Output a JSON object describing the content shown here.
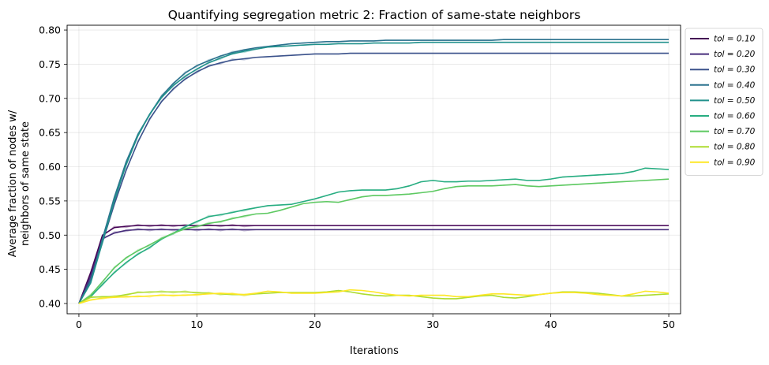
{
  "chart_data": {
    "type": "line",
    "title": "Quantifying segregation metric 2: Fraction of same-state neighbors",
    "xlabel": "Iterations",
    "ylabel_lines": [
      "Average fraction of nodes w/",
      "neighbors of same state"
    ],
    "xlim": [
      -1,
      51
    ],
    "ylim": [
      0.385,
      0.807
    ],
    "xticks": [
      0,
      10,
      20,
      30,
      40,
      50
    ],
    "yticks": [
      0.4,
      0.45,
      0.5,
      0.55,
      0.6,
      0.65,
      0.7,
      0.75,
      0.8
    ],
    "ytick_labels": [
      "0.40",
      "0.45",
      "0.50",
      "0.55",
      "0.60",
      "0.65",
      "0.70",
      "0.75",
      "0.80"
    ],
    "grid": true,
    "legend_position": "outside-top-right",
    "x": [
      0,
      1,
      2,
      3,
      4,
      5,
      6,
      7,
      8,
      9,
      10,
      11,
      12,
      13,
      14,
      15,
      16,
      17,
      18,
      19,
      20,
      21,
      22,
      23,
      24,
      25,
      26,
      27,
      28,
      29,
      30,
      31,
      32,
      33,
      34,
      35,
      36,
      37,
      38,
      39,
      40,
      41,
      42,
      43,
      44,
      45,
      46,
      47,
      48,
      49,
      50
    ],
    "series": [
      {
        "name": "tol = 0.10",
        "color": "#440154",
        "values": [
          0.4,
          0.445,
          0.5,
          0.511,
          0.513,
          0.514,
          0.514,
          0.514,
          0.514,
          0.514,
          0.514,
          0.514,
          0.514,
          0.514,
          0.514,
          0.514,
          0.514,
          0.514,
          0.514,
          0.514,
          0.514,
          0.514,
          0.514,
          0.514,
          0.514,
          0.514,
          0.514,
          0.514,
          0.514,
          0.514,
          0.514,
          0.514,
          0.514,
          0.514,
          0.514,
          0.514,
          0.514,
          0.514,
          0.514,
          0.514,
          0.514,
          0.514,
          0.514,
          0.514,
          0.514,
          0.514,
          0.514,
          0.514,
          0.514,
          0.514,
          0.514
        ]
      },
      {
        "name": "tol = 0.20",
        "color": "#472d7b",
        "values": [
          0.4,
          0.44,
          0.495,
          0.503,
          0.507,
          0.508,
          0.508,
          0.508,
          0.508,
          0.508,
          0.508,
          0.508,
          0.508,
          0.508,
          0.508,
          0.508,
          0.508,
          0.508,
          0.508,
          0.508,
          0.508,
          0.508,
          0.508,
          0.508,
          0.508,
          0.508,
          0.508,
          0.508,
          0.508,
          0.508,
          0.508,
          0.508,
          0.508,
          0.508,
          0.508,
          0.508,
          0.508,
          0.508,
          0.508,
          0.508,
          0.508,
          0.508,
          0.508,
          0.508,
          0.508,
          0.508,
          0.508,
          0.508,
          0.508,
          0.508,
          0.508
        ]
      },
      {
        "name": "tol = 0.30",
        "color": "#3b528b",
        "values": [
          0.4,
          0.435,
          0.49,
          0.545,
          0.595,
          0.636,
          0.67,
          0.695,
          0.714,
          0.728,
          0.739,
          0.747,
          0.752,
          0.756,
          0.758,
          0.76,
          0.761,
          0.762,
          0.763,
          0.764,
          0.765,
          0.765,
          0.765,
          0.766,
          0.766,
          0.766,
          0.766,
          0.766,
          0.766,
          0.766,
          0.766,
          0.766,
          0.766,
          0.766,
          0.766,
          0.766,
          0.766,
          0.766,
          0.766,
          0.766,
          0.766,
          0.766,
          0.766,
          0.766,
          0.766,
          0.766,
          0.766,
          0.766,
          0.766,
          0.766,
          0.766
        ]
      },
      {
        "name": "tol = 0.40",
        "color": "#2c728e",
        "values": [
          0.4,
          0.432,
          0.495,
          0.555,
          0.607,
          0.647,
          0.677,
          0.703,
          0.722,
          0.737,
          0.748,
          0.755,
          0.762,
          0.767,
          0.771,
          0.774,
          0.776,
          0.778,
          0.78,
          0.781,
          0.782,
          0.783,
          0.783,
          0.784,
          0.784,
          0.784,
          0.785,
          0.785,
          0.785,
          0.785,
          0.785,
          0.785,
          0.785,
          0.785,
          0.785,
          0.785,
          0.786,
          0.786,
          0.786,
          0.786,
          0.786,
          0.786,
          0.786,
          0.786,
          0.786,
          0.786,
          0.786,
          0.786,
          0.786,
          0.786,
          0.786
        ]
      },
      {
        "name": "tol = 0.50",
        "color": "#21918c",
        "values": [
          0.4,
          0.43,
          0.49,
          0.55,
          0.603,
          0.645,
          0.677,
          0.701,
          0.719,
          0.732,
          0.743,
          0.752,
          0.759,
          0.765,
          0.769,
          0.772,
          0.775,
          0.776,
          0.777,
          0.778,
          0.779,
          0.779,
          0.78,
          0.78,
          0.78,
          0.781,
          0.781,
          0.781,
          0.781,
          0.782,
          0.782,
          0.782,
          0.782,
          0.782,
          0.782,
          0.782,
          0.782,
          0.782,
          0.782,
          0.782,
          0.782,
          0.782,
          0.782,
          0.782,
          0.782,
          0.782,
          0.782,
          0.782,
          0.782,
          0.782,
          0.782
        ]
      },
      {
        "name": "tol = 0.60",
        "color": "#27ad81",
        "values": [
          0.4,
          0.41,
          0.428,
          0.445,
          0.46,
          0.472,
          0.482,
          0.494,
          0.503,
          0.512,
          0.52,
          0.527,
          0.53,
          0.533,
          0.537,
          0.54,
          0.543,
          0.544,
          0.545,
          0.549,
          0.553,
          0.558,
          0.563,
          0.565,
          0.566,
          0.566,
          0.566,
          0.568,
          0.572,
          0.578,
          0.58,
          0.578,
          0.578,
          0.579,
          0.579,
          0.58,
          0.581,
          0.582,
          0.58,
          0.58,
          0.582,
          0.585,
          0.586,
          0.587,
          0.588,
          0.589,
          0.59,
          0.593,
          0.598,
          0.597,
          0.596
        ]
      },
      {
        "name": "tol = 0.70",
        "color": "#5ec962",
        "values": [
          0.4,
          0.412,
          0.432,
          0.452,
          0.467,
          0.477,
          0.486,
          0.495,
          0.503,
          0.509,
          0.513,
          0.517,
          0.52,
          0.524,
          0.528,
          0.531,
          0.532,
          0.536,
          0.541,
          0.546,
          0.548,
          0.549,
          0.548,
          0.552,
          0.556,
          0.558,
          0.558,
          0.559,
          0.56,
          0.562,
          0.564,
          0.568,
          0.571,
          0.572,
          0.572,
          0.572,
          0.573,
          0.574,
          0.572,
          0.571,
          0.572,
          0.573,
          0.574,
          0.575,
          0.576,
          0.577,
          0.578,
          0.579,
          0.58,
          0.581,
          0.582
        ]
      },
      {
        "name": "tol = 0.80",
        "color": "#addc30",
        "values": [
          0.4,
          0.409,
          0.41,
          0.41,
          0.413,
          0.416,
          0.417,
          0.417,
          0.417,
          0.417,
          0.416,
          0.415,
          0.414,
          0.413,
          0.413,
          0.414,
          0.415,
          0.416,
          0.416,
          0.416,
          0.416,
          0.417,
          0.419,
          0.417,
          0.414,
          0.412,
          0.411,
          0.412,
          0.412,
          0.41,
          0.408,
          0.407,
          0.407,
          0.409,
          0.411,
          0.412,
          0.409,
          0.408,
          0.41,
          0.413,
          0.415,
          0.417,
          0.417,
          0.416,
          0.415,
          0.413,
          0.411,
          0.411,
          0.412,
          0.413,
          0.414
        ]
      },
      {
        "name": "tol = 0.90",
        "color": "#fde725",
        "values": [
          0.4,
          0.405,
          0.408,
          0.409,
          0.41,
          0.41,
          0.411,
          0.412,
          0.412,
          0.412,
          0.413,
          0.414,
          0.415,
          0.414,
          0.413,
          0.415,
          0.418,
          0.417,
          0.415,
          0.415,
          0.415,
          0.416,
          0.417,
          0.42,
          0.419,
          0.417,
          0.414,
          0.412,
          0.411,
          0.412,
          0.412,
          0.412,
          0.41,
          0.41,
          0.412,
          0.414,
          0.414,
          0.413,
          0.412,
          0.413,
          0.415,
          0.416,
          0.416,
          0.415,
          0.413,
          0.412,
          0.411,
          0.414,
          0.418,
          0.417,
          0.415
        ]
      }
    ]
  }
}
